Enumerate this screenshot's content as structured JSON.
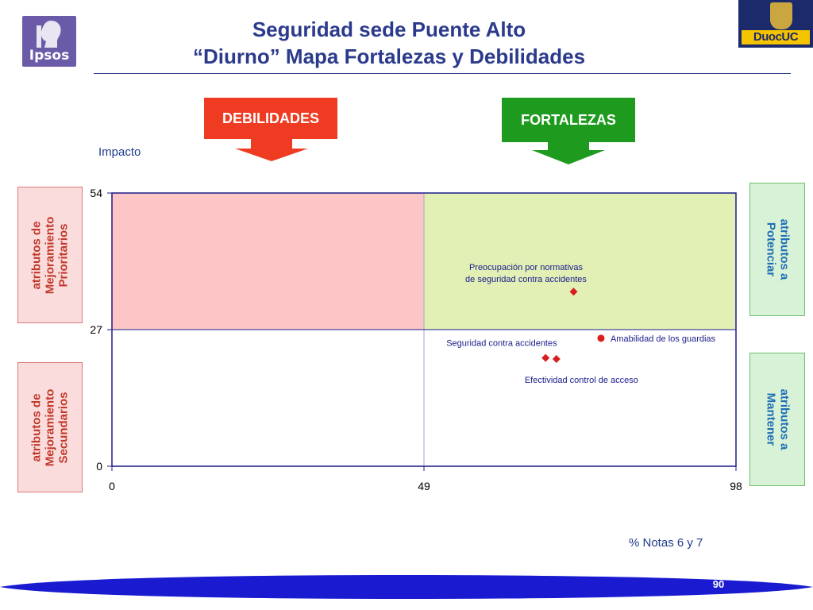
{
  "header": {
    "title_line1": "Seguridad sede Puente Alto",
    "title_line2": "“Diurno” Mapa Fortalezas y Debilidades",
    "left_logo_text": "Ipsos",
    "right_logo_text": "DuocUC"
  },
  "arrows": {
    "debilidades": "DEBILIDADES",
    "fortalezas": "FORTALEZAS"
  },
  "side_labels": {
    "top_left": [
      "atributos de",
      "Mejoramiento",
      "Prioritarios"
    ],
    "bottom_left": [
      "atributos de",
      "Mejoramiento",
      "Secundarios"
    ],
    "top_right": [
      "atributos a",
      "Potenciar"
    ],
    "bottom_right": [
      "atributos a",
      "Mantener"
    ]
  },
  "colors": {
    "title": "#2b3a8c",
    "debilidades": "#ee3b22",
    "fortalezas": "#1e9a1e",
    "quadrant_weak": "#fcc6c6",
    "quadrant_strong": "#e2f0b6",
    "points": "#d81e1e"
  },
  "chart_data": {
    "type": "scatter",
    "xlabel": "% Notas 6 y 7",
    "ylabel": "Impacto",
    "xlim": [
      0,
      98
    ],
    "ylim": [
      0,
      54
    ],
    "xticks": [
      "0",
      "49",
      "98"
    ],
    "yticks": [
      "0",
      "27",
      "54"
    ],
    "x_divider": 49,
    "y_divider": 27,
    "points": [
      {
        "label_lines": [
          "Preocupación por normativas",
          "de seguridad contra accidentes"
        ],
        "x": 72.5,
        "y": 34.5,
        "marker": "diamond"
      },
      {
        "label_lines": [
          "Amabilidad de los guardias"
        ],
        "x": 76.8,
        "y": 25.3,
        "marker": "circle"
      },
      {
        "label_lines": [
          "Seguridad contra accidentes"
        ],
        "x": 68.1,
        "y": 21.4,
        "marker": "diamond"
      },
      {
        "label_lines": [
          "Efectividad control de acceso"
        ],
        "x": 69.8,
        "y": 21.2,
        "marker": "diamond"
      }
    ]
  },
  "footer": {
    "page_number": "90"
  }
}
